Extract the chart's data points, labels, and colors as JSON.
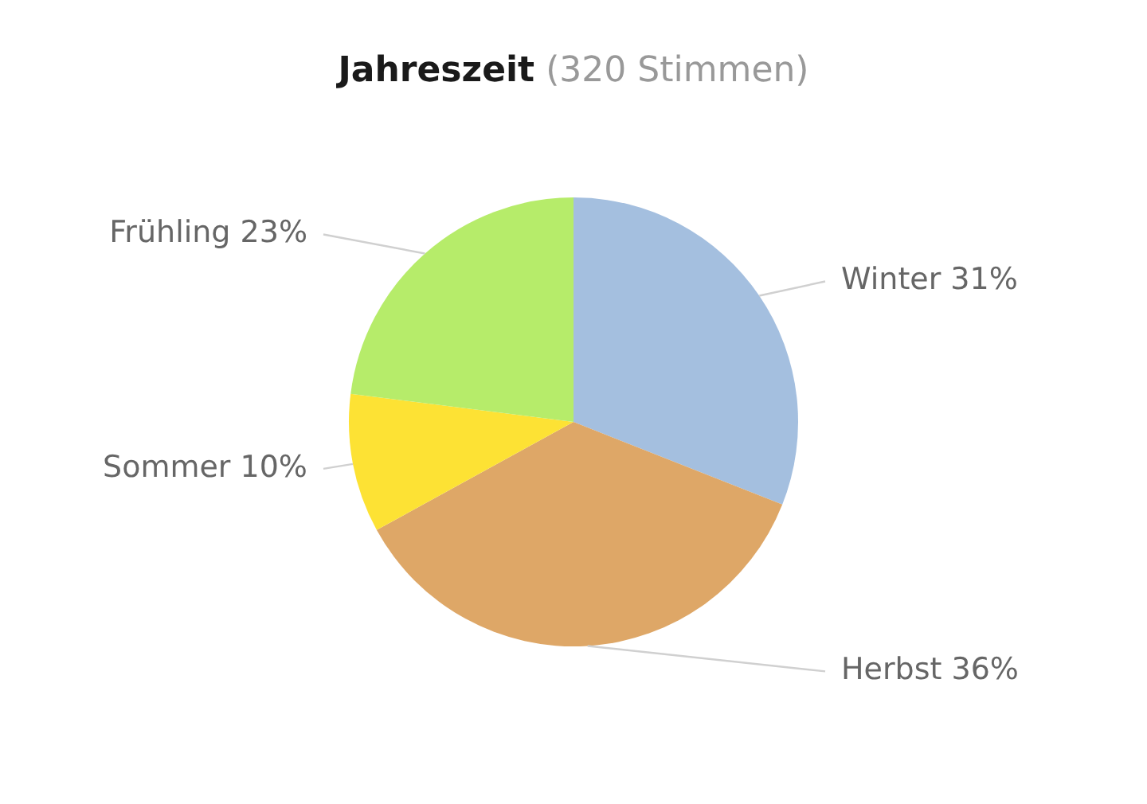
{
  "chart_data": {
    "type": "pie",
    "title": "Jahreszeit",
    "subtitle": "(320 Stimmen)",
    "categories": [
      "Winter",
      "Herbst",
      "Sommer",
      "Frühling"
    ],
    "values": [
      31,
      36,
      10,
      23
    ],
    "colors": [
      "#a4bfdf",
      "#dea767",
      "#fde234",
      "#b6ec6a"
    ],
    "value_labels": [
      "31%",
      "36%",
      "10%",
      "23%"
    ]
  }
}
